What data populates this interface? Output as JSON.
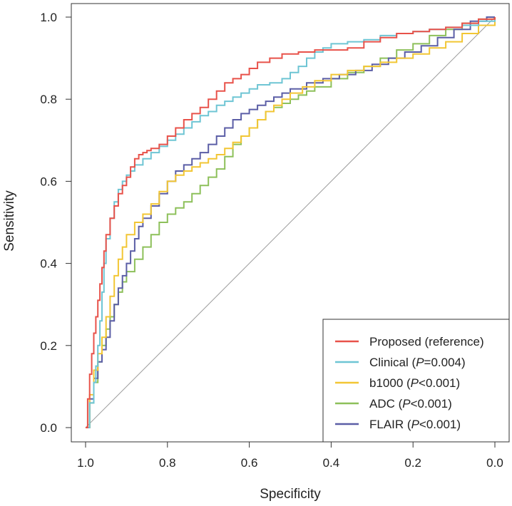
{
  "chart_data": {
    "type": "line",
    "title": "",
    "xlabel": "Specificity",
    "ylabel": "Sensitivity",
    "xlim": [
      1.0,
      0.0
    ],
    "ylim": [
      0.0,
      1.0
    ],
    "xticks": [
      "1.0",
      "0.8",
      "0.6",
      "0.4",
      "0.2",
      "0.0"
    ],
    "yticks": [
      "0.0",
      "0.2",
      "0.4",
      "0.6",
      "0.8",
      "1.0"
    ],
    "legend_position": "bottom-right",
    "reference_line": {
      "from": [
        1.0,
        0.0
      ],
      "to": [
        0.0,
        1.0
      ],
      "color": "#9a9a9a"
    },
    "series": [
      {
        "name": "Proposed (reference)",
        "legend_label": "Proposed (reference)",
        "color": "#e8524a",
        "x": [
          1.0,
          0.995,
          0.99,
          0.985,
          0.98,
          0.975,
          0.97,
          0.965,
          0.96,
          0.955,
          0.95,
          0.94,
          0.93,
          0.92,
          0.91,
          0.9,
          0.89,
          0.88,
          0.87,
          0.86,
          0.85,
          0.84,
          0.82,
          0.8,
          0.78,
          0.76,
          0.74,
          0.72,
          0.7,
          0.68,
          0.66,
          0.64,
          0.62,
          0.6,
          0.58,
          0.55,
          0.52,
          0.48,
          0.44,
          0.4,
          0.36,
          0.32,
          0.28,
          0.24,
          0.2,
          0.16,
          0.12,
          0.08,
          0.04,
          0.0
        ],
        "y": [
          0.0,
          0.07,
          0.13,
          0.18,
          0.23,
          0.27,
          0.31,
          0.35,
          0.39,
          0.43,
          0.47,
          0.51,
          0.54,
          0.57,
          0.59,
          0.61,
          0.635,
          0.655,
          0.665,
          0.67,
          0.675,
          0.68,
          0.69,
          0.71,
          0.73,
          0.75,
          0.765,
          0.78,
          0.8,
          0.82,
          0.84,
          0.85,
          0.86,
          0.875,
          0.89,
          0.9,
          0.91,
          0.915,
          0.92,
          0.92,
          0.925,
          0.94,
          0.95,
          0.96,
          0.965,
          0.97,
          0.975,
          0.985,
          0.995,
          1.0
        ]
      },
      {
        "name": "Clinical",
        "legend_label": "Clinical (P=0.004)",
        "color": "#6ec5d4",
        "x": [
          1.0,
          0.99,
          0.98,
          0.975,
          0.97,
          0.965,
          0.96,
          0.955,
          0.95,
          0.94,
          0.93,
          0.92,
          0.91,
          0.9,
          0.89,
          0.88,
          0.86,
          0.84,
          0.82,
          0.8,
          0.78,
          0.76,
          0.74,
          0.72,
          0.7,
          0.68,
          0.66,
          0.64,
          0.62,
          0.6,
          0.58,
          0.55,
          0.52,
          0.5,
          0.48,
          0.46,
          0.44,
          0.42,
          0.4,
          0.36,
          0.32,
          0.28,
          0.24,
          0.2,
          0.16,
          0.12,
          0.08,
          0.04,
          0.0
        ],
        "y": [
          0.0,
          0.06,
          0.11,
          0.15,
          0.2,
          0.26,
          0.33,
          0.4,
          0.46,
          0.51,
          0.55,
          0.58,
          0.6,
          0.615,
          0.625,
          0.64,
          0.655,
          0.67,
          0.685,
          0.7,
          0.715,
          0.73,
          0.745,
          0.76,
          0.77,
          0.785,
          0.795,
          0.805,
          0.815,
          0.825,
          0.835,
          0.84,
          0.85,
          0.865,
          0.88,
          0.9,
          0.915,
          0.925,
          0.935,
          0.94,
          0.945,
          0.955,
          0.96,
          0.965,
          0.97,
          0.975,
          0.98,
          0.99,
          1.0
        ]
      },
      {
        "name": "b1000",
        "legend_label": "b1000 (P<0.001)",
        "color": "#f2c634",
        "x": [
          1.0,
          0.99,
          0.98,
          0.97,
          0.96,
          0.95,
          0.94,
          0.93,
          0.92,
          0.91,
          0.9,
          0.88,
          0.86,
          0.84,
          0.82,
          0.8,
          0.78,
          0.76,
          0.74,
          0.72,
          0.7,
          0.68,
          0.66,
          0.64,
          0.62,
          0.6,
          0.58,
          0.56,
          0.54,
          0.52,
          0.5,
          0.47,
          0.44,
          0.4,
          0.36,
          0.32,
          0.28,
          0.24,
          0.2,
          0.16,
          0.12,
          0.08,
          0.04,
          0.0
        ],
        "y": [
          0.0,
          0.08,
          0.14,
          0.18,
          0.22,
          0.27,
          0.32,
          0.37,
          0.41,
          0.44,
          0.47,
          0.5,
          0.52,
          0.545,
          0.575,
          0.6,
          0.615,
          0.625,
          0.635,
          0.645,
          0.655,
          0.665,
          0.68,
          0.695,
          0.71,
          0.73,
          0.75,
          0.77,
          0.785,
          0.8,
          0.815,
          0.83,
          0.845,
          0.86,
          0.87,
          0.88,
          0.89,
          0.9,
          0.91,
          0.925,
          0.94,
          0.96,
          0.98,
          1.0
        ]
      },
      {
        "name": "ADC",
        "legend_label": "ADC (P<0.001)",
        "color": "#8dc05a",
        "x": [
          1.0,
          0.99,
          0.98,
          0.97,
          0.96,
          0.95,
          0.94,
          0.93,
          0.92,
          0.91,
          0.9,
          0.88,
          0.86,
          0.84,
          0.82,
          0.8,
          0.78,
          0.76,
          0.74,
          0.72,
          0.7,
          0.68,
          0.66,
          0.64,
          0.62,
          0.6,
          0.58,
          0.56,
          0.54,
          0.52,
          0.5,
          0.48,
          0.46,
          0.44,
          0.4,
          0.36,
          0.32,
          0.28,
          0.24,
          0.2,
          0.16,
          0.12,
          0.08,
          0.04,
          0.0
        ],
        "y": [
          0.0,
          0.06,
          0.11,
          0.16,
          0.2,
          0.24,
          0.27,
          0.3,
          0.33,
          0.355,
          0.38,
          0.41,
          0.44,
          0.47,
          0.5,
          0.52,
          0.535,
          0.55,
          0.57,
          0.59,
          0.61,
          0.63,
          0.66,
          0.69,
          0.71,
          0.73,
          0.75,
          0.77,
          0.78,
          0.79,
          0.8,
          0.81,
          0.82,
          0.83,
          0.85,
          0.865,
          0.88,
          0.9,
          0.92,
          0.935,
          0.955,
          0.97,
          0.985,
          0.995,
          1.0
        ]
      },
      {
        "name": "FLAIR",
        "legend_label": "FLAIR (P<0.001)",
        "color": "#5b5ea6",
        "x": [
          1.0,
          0.99,
          0.98,
          0.97,
          0.96,
          0.95,
          0.94,
          0.93,
          0.92,
          0.91,
          0.9,
          0.89,
          0.88,
          0.87,
          0.86,
          0.84,
          0.82,
          0.8,
          0.78,
          0.76,
          0.74,
          0.72,
          0.7,
          0.68,
          0.66,
          0.64,
          0.62,
          0.6,
          0.58,
          0.56,
          0.54,
          0.52,
          0.5,
          0.46,
          0.42,
          0.38,
          0.34,
          0.3,
          0.26,
          0.22,
          0.18,
          0.14,
          0.1,
          0.06,
          0.02,
          0.0
        ],
        "y": [
          0.0,
          0.07,
          0.12,
          0.16,
          0.19,
          0.22,
          0.26,
          0.3,
          0.34,
          0.37,
          0.4,
          0.43,
          0.46,
          0.49,
          0.51,
          0.54,
          0.57,
          0.6,
          0.625,
          0.64,
          0.655,
          0.67,
          0.69,
          0.71,
          0.73,
          0.75,
          0.765,
          0.775,
          0.785,
          0.795,
          0.805,
          0.815,
          0.825,
          0.84,
          0.85,
          0.86,
          0.87,
          0.885,
          0.9,
          0.915,
          0.93,
          0.95,
          0.97,
          0.99,
          1.0,
          1.0
        ]
      }
    ]
  }
}
